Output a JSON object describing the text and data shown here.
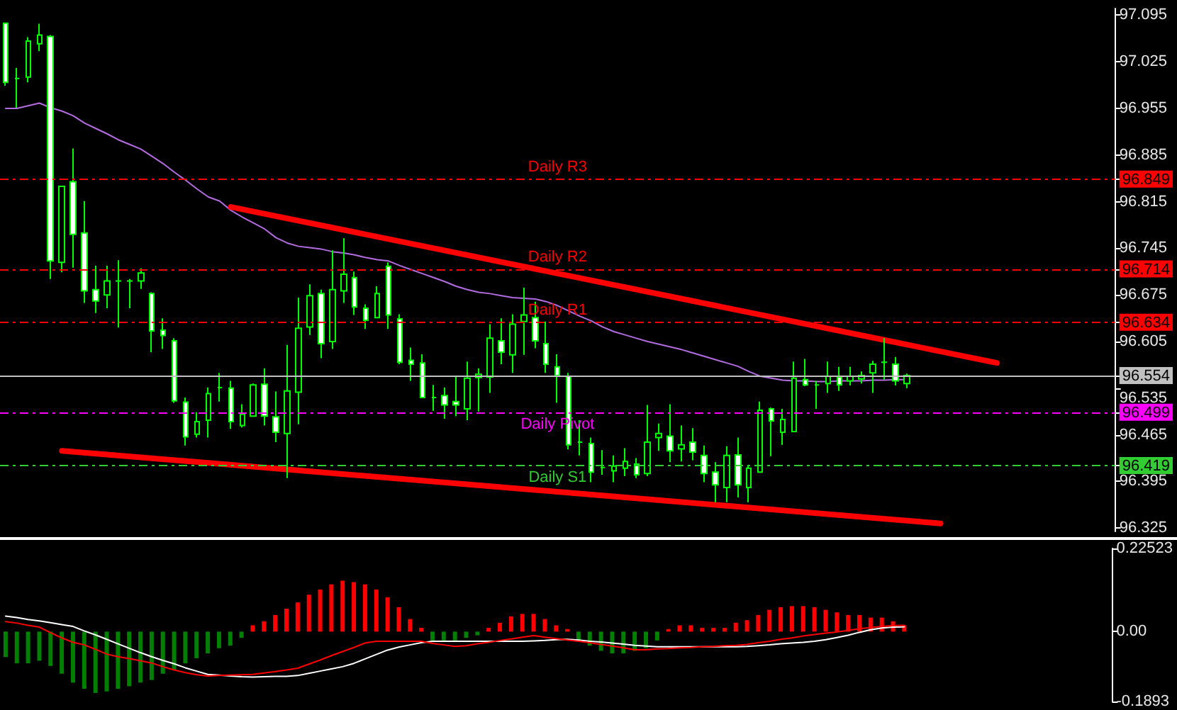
{
  "chart_data": [
    {
      "type": "candlestick",
      "color": "#00ff00",
      "categories": [
        null,
        null,
        null,
        null,
        null,
        null,
        null,
        null,
        null,
        null,
        null,
        null,
        null,
        null,
        null,
        null,
        null,
        null,
        null,
        null,
        null,
        null,
        null,
        null,
        null,
        null,
        null,
        null,
        null,
        null,
        null,
        null,
        null,
        null,
        null,
        null,
        null,
        null,
        null,
        null,
        null,
        null,
        null,
        null,
        null,
        null,
        null,
        null,
        null,
        null,
        null,
        null,
        null,
        null,
        null,
        null,
        null,
        null,
        null,
        null,
        null,
        null,
        null,
        null,
        null,
        null,
        null,
        null,
        null,
        null,
        null,
        null,
        null,
        null,
        null,
        null,
        null,
        null,
        null,
        null,
        null,
        null,
        null,
        null,
        null,
        null,
        null,
        null,
        null,
        null,
        null,
        null,
        null,
        null,
        null,
        null,
        null,
        null,
        null
      ],
      "ohlc": [
        [
          97.083,
          97.083,
          96.989,
          96.994
        ],
        [
          97.0,
          97.016,
          96.956,
          97.0
        ],
        [
          97.002,
          97.062,
          96.994,
          97.056
        ],
        [
          97.052,
          97.082,
          97.041,
          97.065
        ],
        [
          97.063,
          97.065,
          96.699,
          96.726
        ],
        [
          96.724,
          96.838,
          96.709,
          96.838
        ],
        [
          96.845,
          96.895,
          96.716,
          96.766
        ],
        [
          96.768,
          96.816,
          96.663,
          96.681
        ],
        [
          96.683,
          96.719,
          96.648,
          96.666
        ],
        [
          96.675,
          96.719,
          96.655,
          96.696
        ],
        [
          96.696,
          96.727,
          96.626,
          96.696
        ],
        [
          96.696,
          96.699,
          96.655,
          96.696
        ],
        [
          96.696,
          96.715,
          96.684,
          96.708
        ],
        [
          96.677,
          96.679,
          96.589,
          96.621
        ],
        [
          96.622,
          96.64,
          96.594,
          96.614
        ],
        [
          96.606,
          96.61,
          96.513,
          96.516
        ],
        [
          96.514,
          96.521,
          96.449,
          96.462
        ],
        [
          96.466,
          96.499,
          96.461,
          96.485
        ],
        [
          96.487,
          96.536,
          96.461,
          96.527
        ],
        [
          96.536,
          96.558,
          96.515,
          96.536
        ],
        [
          96.535,
          96.546,
          96.474,
          96.485
        ],
        [
          96.479,
          96.511,
          96.476,
          96.496
        ],
        [
          96.493,
          96.542,
          96.493,
          96.54
        ],
        [
          96.541,
          96.565,
          96.479,
          96.493
        ],
        [
          96.492,
          96.53,
          96.454,
          96.469
        ],
        [
          96.467,
          96.6,
          96.4,
          96.531
        ],
        [
          96.529,
          96.671,
          96.481,
          96.625
        ],
        [
          96.627,
          96.691,
          96.615,
          96.674
        ],
        [
          96.677,
          96.683,
          96.58,
          96.602
        ],
        [
          96.605,
          96.742,
          96.594,
          96.683
        ],
        [
          96.681,
          96.76,
          96.663,
          96.706
        ],
        [
          96.701,
          96.71,
          96.645,
          96.657
        ],
        [
          96.655,
          96.661,
          96.624,
          96.637
        ],
        [
          96.641,
          96.688,
          96.641,
          96.677
        ],
        [
          96.718,
          96.724,
          96.624,
          96.645
        ],
        [
          96.639,
          96.646,
          96.571,
          96.574
        ],
        [
          96.577,
          96.596,
          96.546,
          96.571
        ],
        [
          96.573,
          96.586,
          96.521,
          96.521
        ],
        [
          96.521,
          96.54,
          96.501,
          96.521
        ],
        [
          96.524,
          96.536,
          96.489,
          96.51
        ],
        [
          96.515,
          96.553,
          96.493,
          96.51
        ],
        [
          96.504,
          96.575,
          96.487,
          96.55
        ],
        [
          96.551,
          96.565,
          96.5,
          96.556
        ],
        [
          96.552,
          96.631,
          96.528,
          96.61
        ],
        [
          96.606,
          96.64,
          96.571,
          96.589
        ],
        [
          96.585,
          96.646,
          96.558,
          96.631
        ],
        [
          96.635,
          96.686,
          96.585,
          96.645
        ],
        [
          96.641,
          96.665,
          96.595,
          96.606
        ],
        [
          96.602,
          96.635,
          96.558,
          96.571
        ],
        [
          96.567,
          96.586,
          96.513,
          96.554
        ],
        [
          96.553,
          96.558,
          96.443,
          96.45
        ],
        [
          96.454,
          96.487,
          96.434,
          96.454
        ],
        [
          96.452,
          96.461,
          96.394,
          96.409
        ],
        [
          96.416,
          96.442,
          96.405,
          96.416
        ],
        [
          96.411,
          96.434,
          96.394,
          96.418
        ],
        [
          96.415,
          96.445,
          96.403,
          96.425
        ],
        [
          96.421,
          96.43,
          96.4,
          96.405
        ],
        [
          96.407,
          96.51,
          96.403,
          96.454
        ],
        [
          96.461,
          96.482,
          96.441,
          96.467
        ],
        [
          96.463,
          96.511,
          96.424,
          96.441
        ],
        [
          96.444,
          96.479,
          96.425,
          96.45
        ],
        [
          96.454,
          96.475,
          96.427,
          96.439
        ],
        [
          96.434,
          96.449,
          96.394,
          96.407
        ],
        [
          96.409,
          96.424,
          96.364,
          96.39
        ],
        [
          96.386,
          96.448,
          96.364,
          96.434
        ],
        [
          96.435,
          96.461,
          96.371,
          96.39
        ],
        [
          96.386,
          96.42,
          96.364,
          96.415
        ],
        [
          96.409,
          96.515,
          96.409,
          96.502
        ],
        [
          96.504,
          96.506,
          96.433,
          96.486
        ],
        [
          96.469,
          96.504,
          96.45,
          96.488
        ],
        [
          96.47,
          96.575,
          96.47,
          96.55
        ],
        [
          96.548,
          96.579,
          96.538,
          96.54
        ],
        [
          96.54,
          96.546,
          96.504,
          96.54
        ],
        [
          96.542,
          96.575,
          96.528,
          96.553
        ],
        [
          96.552,
          96.567,
          96.531,
          96.54
        ],
        [
          96.546,
          96.567,
          96.539,
          96.553
        ],
        [
          96.549,
          96.56,
          96.542,
          96.554
        ],
        [
          96.558,
          96.576,
          96.528,
          96.571
        ],
        [
          96.574,
          96.61,
          96.548,
          96.574
        ],
        [
          96.571,
          96.582,
          96.539,
          96.546
        ],
        [
          96.542,
          96.557,
          96.535,
          96.554
        ],
        null,
        null,
        null,
        null,
        null,
        null,
        null,
        null,
        null,
        null,
        null,
        null,
        null,
        null,
        null,
        null,
        null,
        null
      ],
      "series": [
        {
          "type": "line",
          "color": "#b36be0",
          "values": [
            96.955,
            96.955,
            96.959,
            96.963,
            96.956,
            96.951,
            96.944,
            96.933,
            96.925,
            96.917,
            96.908,
            96.901,
            96.894,
            96.883,
            96.872,
            96.859,
            96.847,
            96.834,
            96.822,
            96.816,
            96.802,
            96.792,
            96.783,
            96.774,
            96.761,
            96.753,
            96.748,
            96.746,
            96.744,
            96.74,
            96.738,
            96.735,
            96.731,
            96.728,
            96.726,
            96.719,
            96.713,
            96.707,
            96.701,
            96.695,
            96.688,
            96.683,
            96.679,
            96.677,
            96.674,
            96.671,
            96.67,
            96.669,
            96.665,
            96.659,
            96.651,
            96.643,
            96.636,
            96.627,
            96.62,
            96.615,
            96.61,
            96.605,
            96.601,
            96.597,
            96.593,
            96.588,
            96.583,
            96.578,
            96.573,
            96.568,
            96.56,
            96.553,
            96.55,
            96.547,
            96.546,
            96.546,
            96.545,
            96.545,
            96.546,
            96.546,
            96.546,
            96.547,
            96.547,
            96.548,
            96.548,
            null,
            null,
            null,
            null,
            null,
            null,
            null,
            null,
            null,
            null,
            null,
            null,
            null,
            null,
            null,
            null,
            null,
            null
          ]
        },
        {
          "type": "line",
          "color": "#ff0000",
          "values": [
            null,
            null,
            null,
            null,
            null,
            null,
            null,
            null,
            null,
            null,
            null,
            null,
            null,
            null,
            null,
            null,
            null,
            null,
            null,
            null,
            96.807,
            null,
            null,
            null,
            null,
            null,
            null,
            null,
            null,
            null,
            null,
            null,
            null,
            null,
            null,
            null,
            null,
            null,
            null,
            null,
            null,
            null,
            null,
            null,
            null,
            null,
            null,
            null,
            null,
            null,
            null,
            null,
            null,
            null,
            null,
            null,
            null,
            null,
            null,
            null,
            null,
            null,
            null,
            null,
            null,
            null,
            null,
            null,
            null,
            null,
            null,
            null,
            null,
            null,
            null,
            null,
            null,
            null,
            null,
            null,
            null,
            null,
            null,
            null,
            null,
            null,
            null,
            null,
            96.573,
            null,
            null,
            null,
            null,
            null,
            null,
            null,
            null,
            null,
            null
          ]
        },
        {
          "type": "line",
          "color": "#ff0000",
          "values": [
            null,
            null,
            null,
            null,
            null,
            96.441,
            null,
            null,
            null,
            null,
            null,
            null,
            null,
            null,
            null,
            null,
            null,
            null,
            null,
            null,
            null,
            null,
            null,
            null,
            null,
            null,
            null,
            null,
            null,
            null,
            null,
            null,
            null,
            null,
            null,
            null,
            null,
            null,
            null,
            null,
            null,
            null,
            null,
            null,
            null,
            null,
            null,
            null,
            null,
            null,
            null,
            null,
            null,
            null,
            null,
            null,
            null,
            null,
            null,
            null,
            null,
            null,
            null,
            null,
            null,
            null,
            null,
            null,
            null,
            null,
            null,
            null,
            null,
            null,
            null,
            null,
            null,
            null,
            null,
            null,
            null,
            null,
            null,
            96.332,
            null,
            null,
            null,
            null,
            null,
            null,
            null,
            null,
            null,
            null,
            null,
            null,
            null,
            null,
            null
          ]
        }
      ],
      "ylim": [
        96.32,
        97.105
      ],
      "yticks": [
        97.095,
        97.025,
        96.955,
        96.885,
        96.849,
        96.815,
        96.745,
        96.714,
        96.675,
        96.634,
        96.605,
        96.554,
        96.535,
        96.499,
        96.465,
        96.419,
        96.395,
        96.325
      ],
      "ref_lines": [
        {
          "axis": "y",
          "value": 96.849,
          "label": "Daily R3",
          "color": "#ff0000",
          "line_style": "dashed"
        },
        {
          "axis": "y",
          "value": 96.714,
          "label": "Daily R2",
          "color": "#ff0000",
          "line_style": "dashed"
        },
        {
          "axis": "y",
          "value": 96.634,
          "label": "Daily R1",
          "color": "#ff0000",
          "line_style": "dashed"
        },
        {
          "axis": "y",
          "value": 96.554,
          "color": "#c0c0c0",
          "line_style": "solid"
        },
        {
          "axis": "y",
          "value": 96.499,
          "label": "Daily Pivot",
          "color": "#ff00ff",
          "line_style": "dashed"
        },
        {
          "axis": "y",
          "value": 96.419,
          "label": "Daily S1",
          "color": "#32cd32",
          "line_style": "dashed"
        }
      ],
      "tick_labels": "y",
      "marker": "none"
    },
    {
      "type": "bar",
      "categories": [
        null,
        null,
        null,
        null,
        null,
        null,
        null,
        null,
        null,
        null,
        null,
        null,
        null,
        null,
        null,
        null,
        null,
        null,
        null,
        null,
        null,
        null,
        null,
        null,
        null,
        null,
        null,
        null,
        null,
        null,
        null,
        null,
        null,
        null,
        null,
        null,
        null,
        null,
        null,
        null,
        null,
        null,
        null,
        null,
        null,
        null,
        null,
        null,
        null,
        null,
        null,
        null,
        null,
        null,
        null,
        null,
        null,
        null,
        null,
        null,
        null,
        null,
        null,
        null,
        null,
        null,
        null,
        null,
        null,
        null,
        null,
        null,
        null,
        null,
        null,
        null,
        null,
        null,
        null,
        null,
        null,
        null,
        null,
        null,
        null,
        null,
        null,
        null,
        null,
        null,
        null,
        null,
        null,
        null,
        null,
        null,
        null,
        null,
        null
      ],
      "series": [
        {
          "type": "bar",
          "values": [
            -0.069,
            -0.086,
            -0.086,
            -0.079,
            -0.093,
            -0.114,
            -0.138,
            -0.155,
            -0.166,
            -0.162,
            -0.155,
            -0.148,
            -0.138,
            -0.131,
            -0.114,
            -0.103,
            -0.086,
            -0.072,
            -0.059,
            -0.045,
            -0.038,
            -0.017,
            0.017,
            0.028,
            0.045,
            0.062,
            0.079,
            0.1,
            0.114,
            0.128,
            0.138,
            0.134,
            0.128,
            0.114,
            0.093,
            0.066,
            0.034,
            0.01,
            -0.024,
            -0.024,
            -0.024,
            -0.017,
            -0.01,
            0.01,
            0.024,
            0.041,
            0.048,
            0.048,
            0.034,
            0.017,
            0.007,
            -0.024,
            -0.038,
            -0.052,
            -0.059,
            -0.059,
            -0.052,
            -0.045,
            -0.024,
            0.007,
            0.017,
            0.017,
            0.01,
            0.01,
            0.01,
            0.024,
            0.031,
            0.045,
            0.059,
            0.066,
            0.069,
            0.069,
            0.066,
            0.059,
            0.052,
            0.045,
            0.045,
            0.038,
            0.038,
            0.028,
            0.017,
            null,
            null,
            null,
            null,
            null,
            null,
            null,
            null,
            null,
            null,
            null,
            null,
            null,
            null,
            null,
            null,
            null,
            null
          ],
          "colors": [
            "#008000",
            "#008000",
            "#008000",
            "#008000",
            "#008000",
            "#008000",
            "#008000",
            "#008000",
            "#008000",
            "#008000",
            "#008000",
            "#008000",
            "#008000",
            "#008000",
            "#008000",
            "#008000",
            "#008000",
            "#008000",
            "#008000",
            "#008000",
            "#008000",
            "#008000",
            "#ff0000",
            "#ff0000",
            "#ff0000",
            "#ff0000",
            "#ff0000",
            "#ff0000",
            "#ff0000",
            "#ff0000",
            "#ff0000",
            "#ff0000",
            "#ff0000",
            "#ff0000",
            "#ff0000",
            "#ff0000",
            "#ff0000",
            "#ff0000",
            "#008000",
            "#008000",
            "#008000",
            "#008000",
            "#008000",
            "#ff0000",
            "#ff0000",
            "#ff0000",
            "#ff0000",
            "#ff0000",
            "#ff0000",
            "#ff0000",
            "#ff0000",
            "#008000",
            "#008000",
            "#008000",
            "#008000",
            "#008000",
            "#008000",
            "#008000",
            "#008000",
            "#ff0000",
            "#ff0000",
            "#ff0000",
            "#ff0000",
            "#ff0000",
            "#ff0000",
            "#ff0000",
            "#ff0000",
            "#ff0000",
            "#ff0000",
            "#ff0000",
            "#ff0000",
            "#ff0000",
            "#ff0000",
            "#ff0000",
            "#ff0000",
            "#ff0000",
            "#ff0000",
            "#ff0000",
            "#ff0000",
            "#ff0000",
            "#ff0000",
            null,
            null,
            null,
            null,
            null,
            null,
            null,
            null,
            null,
            null,
            null,
            null,
            null,
            null,
            null,
            null,
            null,
            null
          ]
        },
        {
          "type": "line",
          "color": "#ffffff",
          "values": [
            0.042,
            0.038,
            0.033,
            0.029,
            0.024,
            0.019,
            0.014,
            0.002,
            -0.009,
            -0.021,
            -0.033,
            -0.045,
            -0.057,
            -0.068,
            -0.078,
            -0.087,
            -0.098,
            -0.107,
            -0.116,
            -0.118,
            -0.12,
            -0.122,
            -0.123,
            -0.122,
            -0.121,
            -0.121,
            -0.119,
            -0.113,
            -0.107,
            -0.101,
            -0.095,
            -0.086,
            -0.074,
            -0.062,
            -0.05,
            -0.042,
            -0.036,
            -0.03,
            -0.026,
            -0.026,
            -0.026,
            -0.026,
            -0.026,
            -0.026,
            -0.026,
            -0.026,
            -0.026,
            -0.025,
            -0.024,
            -0.022,
            -0.021,
            -0.023,
            -0.026,
            -0.028,
            -0.031,
            -0.034,
            -0.037,
            -0.039,
            -0.041,
            -0.041,
            -0.041,
            -0.041,
            -0.041,
            -0.041,
            -0.041,
            -0.041,
            -0.04,
            -0.038,
            -0.036,
            -0.033,
            -0.031,
            -0.029,
            -0.026,
            -0.022,
            -0.016,
            -0.01,
            -0.002,
            0.005,
            0.01,
            0.012,
            0.013,
            null,
            null,
            null,
            null,
            null,
            null,
            null,
            null,
            null,
            null,
            null,
            null,
            null,
            null,
            null,
            null,
            null,
            null
          ]
        },
        {
          "type": "line",
          "color": "#ff0000",
          "values": [
            0.027,
            0.023,
            0.017,
            0.012,
            -0.003,
            -0.017,
            -0.029,
            -0.036,
            -0.048,
            -0.061,
            -0.068,
            -0.073,
            -0.079,
            -0.085,
            -0.095,
            -0.104,
            -0.111,
            -0.117,
            -0.12,
            -0.119,
            -0.118,
            -0.117,
            -0.116,
            -0.112,
            -0.108,
            -0.104,
            -0.099,
            -0.088,
            -0.077,
            -0.065,
            -0.054,
            -0.043,
            -0.031,
            -0.026,
            -0.026,
            -0.026,
            -0.026,
            -0.026,
            -0.032,
            -0.036,
            -0.04,
            -0.038,
            -0.033,
            -0.029,
            -0.024,
            -0.02,
            -0.015,
            -0.011,
            -0.015,
            -0.019,
            -0.023,
            -0.026,
            -0.03,
            -0.035,
            -0.039,
            -0.044,
            -0.049,
            -0.049,
            -0.047,
            -0.046,
            -0.044,
            -0.043,
            -0.041,
            -0.04,
            -0.038,
            -0.037,
            -0.035,
            -0.03,
            -0.026,
            -0.021,
            -0.017,
            -0.012,
            -0.008,
            -0.004,
            -0.001,
            0.003,
            0.008,
            0.011,
            0.014,
            0.016,
            0.017,
            null,
            null,
            null,
            null,
            null,
            null,
            null,
            null,
            null,
            null,
            null,
            null,
            null,
            null,
            null,
            null,
            null,
            null
          ]
        }
      ],
      "ylim": [
        -0.1893,
        0.22523
      ],
      "yticks": [
        0.22523,
        {
          "value": 0,
          "label": "0.00"
        },
        -0.1893
      ],
      "tick_labels": "y",
      "marker": "none"
    }
  ]
}
